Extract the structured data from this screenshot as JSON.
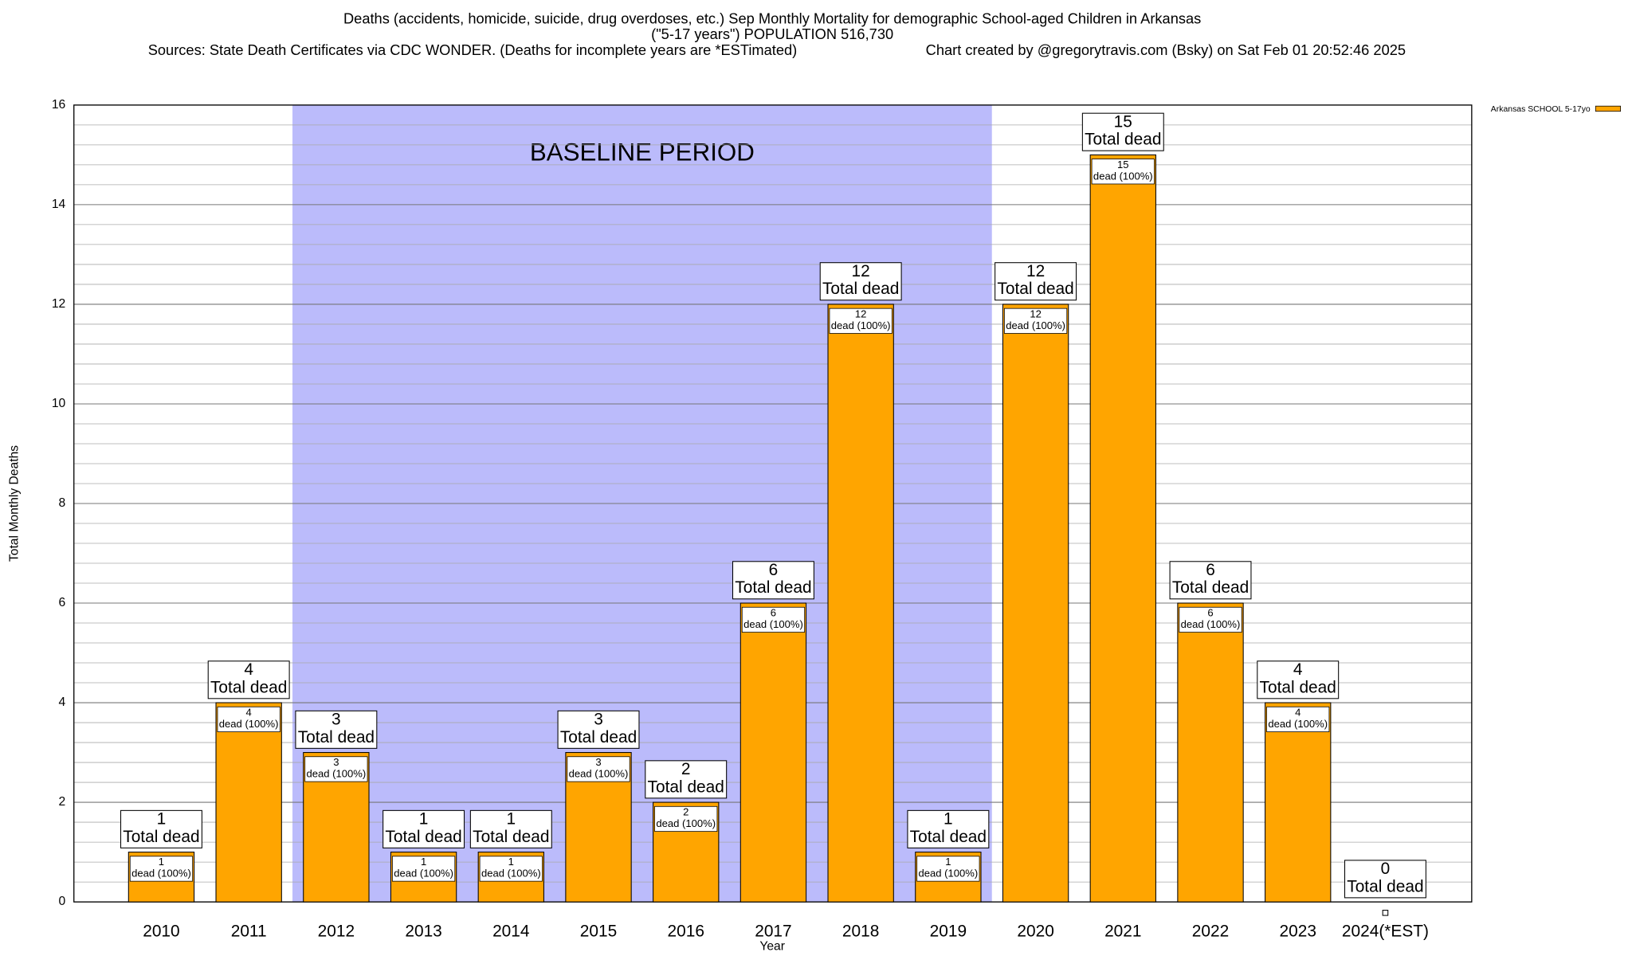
{
  "chart_data": {
    "type": "bar",
    "title": "Deaths (accidents, homicide, suicide, drug overdoses, etc.) Sep Monthly Mortality for demographic School-aged Children in Arkansas",
    "subtitle": "(\"5-17 years\") POPULATION 516,730",
    "source": "Sources: State Death Certificates via CDC WONDER. (Deaths for incomplete years are *ESTimated)",
    "credit": "Chart created by @gregorytravis.com (Bsky) on Sat Feb 01 20:52:46 2025",
    "x_label": "Year",
    "y_label": "Total Monthly Deaths",
    "categories": [
      "2010",
      "2011",
      "2012",
      "2013",
      "2014",
      "2015",
      "2016",
      "2017",
      "2018",
      "2019",
      "2020",
      "2021",
      "2022",
      "2023",
      "2024(*EST)"
    ],
    "series": [
      {
        "name": "Arkansas SCHOOL 5-17yo",
        "color": "#ffa500",
        "values": [
          1,
          4,
          3,
          1,
          1,
          3,
          2,
          6,
          12,
          1,
          12,
          15,
          6,
          4,
          0
        ]
      }
    ],
    "total_label": "Total dead",
    "segment_label": "dead (100%)",
    "baseline": {
      "text": "BASELINE PERIOD",
      "from": "2012",
      "to": "2019",
      "color": "#bbbbfb"
    },
    "ylim": [
      0,
      16
    ],
    "yticks": [
      0,
      2,
      4,
      6,
      8,
      10,
      12,
      14,
      16
    ],
    "y_minor_ticks": [
      0.4,
      0.8,
      1.2,
      1.6,
      2.4,
      2.8,
      3.2,
      3.6,
      4.4,
      4.8,
      5.2,
      5.6,
      6.4,
      6.8,
      7.2,
      7.6,
      8.4,
      8.8,
      9.2,
      9.6,
      10.4,
      10.8,
      11.2,
      11.6,
      12.4,
      12.8,
      13.2,
      13.6,
      14.4,
      14.8,
      15.2,
      15.6
    ],
    "grid": true,
    "legend": "top-right"
  }
}
